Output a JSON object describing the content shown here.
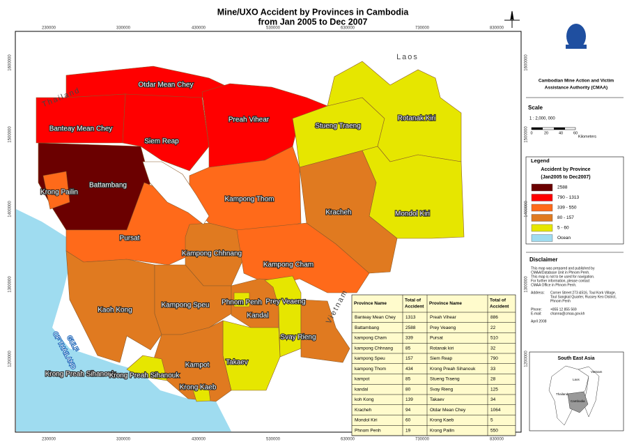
{
  "title": [
    "Mine/UXO Accident by Provinces in Cambodia",
    "from Jan 2005 to Dec 2007"
  ],
  "map": {
    "x_ticks": [
      "230000",
      "330000",
      "430000",
      "530000",
      "630000",
      "730000",
      "830000"
    ],
    "y_ticks": [
      "1600000",
      "1500000",
      "1400000",
      "1300000",
      "1200000"
    ],
    "provinces": [
      "Otdar Mean Chey",
      "Banteay Mean Chey",
      "Siem Reap",
      "Preah Vihear",
      "Stueng Traeng",
      "Rotanak Kiri",
      "Battambang",
      "Krong Pailin",
      "Kampong Thom",
      "Kracheh",
      "Mondol Kiri",
      "Pursat",
      "Kampong Chhnang",
      "Kampong Cham",
      "Kaoh Kong",
      "Kampong Speu",
      "Phnom Penh",
      "Prey Veaeng",
      "Kandal",
      "Svay Rieng",
      "Takaev",
      "Kampot",
      "Krong Preah Sihanouk",
      "Krong Preah Sihanouk",
      "Krong Kaeb"
    ],
    "countries": [
      "Thailand",
      "Laos",
      "Vietnam"
    ],
    "sea": [
      "GULF",
      "OF THAILAND"
    ]
  },
  "table": {
    "headers": [
      "Province Name",
      [
        "Total of",
        "Accident"
      ],
      "Province Name",
      [
        "Total of",
        "Accident"
      ]
    ],
    "rows": [
      [
        "Banteay Mean Chey",
        1313,
        "Preah Vihear",
        886
      ],
      [
        "Battambang",
        2588,
        "Prey Veaeng",
        22
      ],
      [
        "kampong Cham",
        339,
        "Pursat",
        510
      ],
      [
        "kampong Chhnang",
        85,
        "Rotanak kiri",
        32
      ],
      [
        "kampong Speu",
        157,
        "Siem Reap",
        790
      ],
      [
        "kampong Thom",
        434,
        "Krong Preah Sihanouk",
        33
      ],
      [
        "kampot",
        85,
        "Stueng Traeng",
        28
      ],
      [
        "kandal",
        80,
        "Svay Rieng",
        125
      ],
      [
        "koh Kong",
        139,
        "Takaev",
        34
      ],
      [
        "Kracheh",
        94,
        "Otdar Mean Chey",
        1064
      ],
      [
        "Mondol Kiri",
        60,
        "Krong Kaeb",
        5
      ],
      [
        "Phnom Penh",
        19,
        "Krong Pailin",
        550
      ]
    ]
  },
  "agency": [
    "Cambodian Mine Action and Victim",
    "Assistance Authority (CMAA)"
  ],
  "scale": {
    "title": "Scale",
    "ratio": "1 : 2,000, 000",
    "bar_labels": [
      "0",
      "20",
      "40",
      "60"
    ],
    "unit": "Kilometers"
  },
  "legend": {
    "title": "Legend",
    "subtitle": [
      "Accident by Province",
      "(Jan2005 to Dec2007)"
    ],
    "entries": [
      "2588",
      "790 - 1313",
      "339 - 550",
      "80 - 157",
      "5 - 60",
      "Ocean"
    ]
  },
  "disclaimer": {
    "title": "Disclaimer",
    "lines": [
      "This map was prepared and published by",
      "CMAA/Database Unit in Phnom Penh.",
      "This map is not to be used for navigation.",
      "For further information, please contact",
      "CMAA Office in Phnom Penh."
    ],
    "address_label": "Address:",
    "address": [
      "Corner Street 273 &516, Toul Kork Village,",
      "Toul Sangkat Quarter, Russey Keo District,",
      "Phnom Penh"
    ],
    "phone_label": "Phone:",
    "phone": "+855 12 855 569",
    "email_label": "E-mail:",
    "email": "channa@cmaa.gov.kh",
    "date": "April 2008"
  },
  "inset": {
    "title": "South East Asia",
    "labels": [
      "Vietnam",
      "Laos",
      "Thailand",
      "Cambodia"
    ]
  }
}
